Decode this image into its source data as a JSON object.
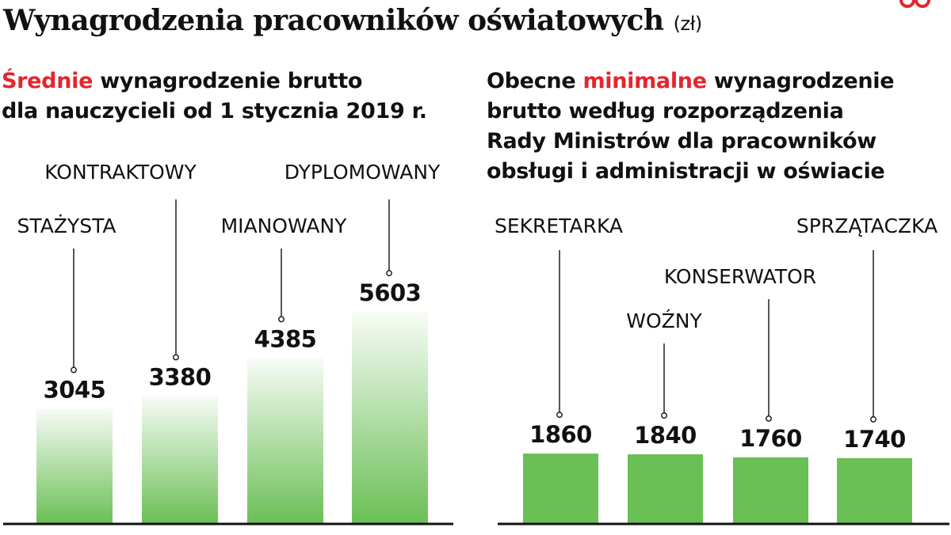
{
  "title": {
    "main": "Wynagrodzenia pracowników oświatowych",
    "unit": "(zł)"
  },
  "colors": {
    "accent": "#e3262d",
    "bar": "#6abf55",
    "bar_fade": "#ffffff",
    "axis": "#111111"
  },
  "left_subtitle": {
    "highlight": "Średnie",
    "line1_rest": " wynagrodzenie brutto",
    "line2": "dla nauczycieli od 1 stycznia 2019 r."
  },
  "right_subtitle": {
    "line1_pre": "Obecne ",
    "highlight": "minimalne",
    "line1_post": " wynagrodzenie",
    "line2": "brutto według rozporządzenia",
    "line3": "Rady Ministrów dla pracowników",
    "line4": "obsługi i administracji w oświacie"
  },
  "chart_data": [
    {
      "type": "bar",
      "title": "Średnie wynagrodzenie brutto dla nauczycieli od 1 stycznia 2019 r.",
      "categories": [
        "STAŻYSTA",
        "KONTRAKTOWY",
        "MIANOWANY",
        "DYPLOMOWANY"
      ],
      "values": [
        3045,
        3380,
        4385,
        5603
      ],
      "ylim": [
        0,
        6000
      ],
      "style": "gradient"
    },
    {
      "type": "bar",
      "title": "Obecne minimalne wynagrodzenie brutto według rozporządzenia Rady Ministrów dla pracowników obsługi i administracji w oświacie",
      "categories": [
        "SEKRETARKA",
        "WOŹNY",
        "KONSERWATOR",
        "SPRZĄTACZKA"
      ],
      "values": [
        1860,
        1840,
        1760,
        1740
      ],
      "ylim": [
        0,
        6000
      ],
      "style": "solid"
    }
  ]
}
